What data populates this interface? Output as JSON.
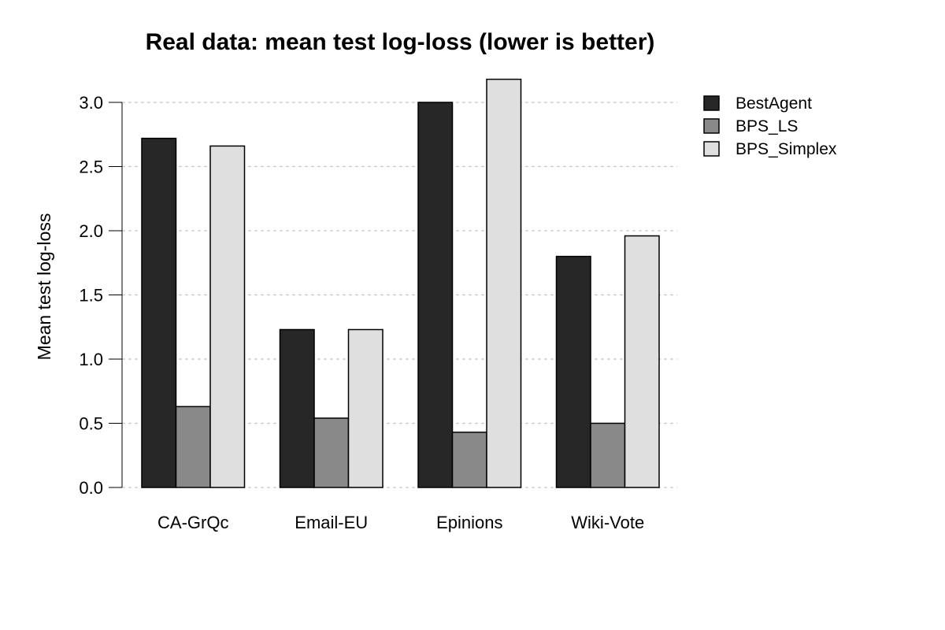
{
  "chart_data": {
    "type": "bar",
    "title": "Real data: mean test log-loss (lower is better)",
    "xlabel": "",
    "ylabel": "Mean test log-loss",
    "categories": [
      "CA-GrQc",
      "Email-EU",
      "Epinions",
      "Wiki-Vote"
    ],
    "series": [
      {
        "name": "BestAgent",
        "color": "#272727",
        "values": [
          2.72,
          1.23,
          3.0,
          1.8
        ]
      },
      {
        "name": "BPS_LS",
        "color": "#898989",
        "values": [
          0.63,
          0.54,
          0.43,
          0.5
        ]
      },
      {
        "name": "BPS_Simplex",
        "color": "#dfdfdf",
        "values": [
          2.66,
          1.23,
          3.18,
          1.96
        ]
      }
    ],
    "ylim": [
      0,
      3.2
    ],
    "yticks": [
      "0.0",
      "0.5",
      "1.0",
      "1.5",
      "2.0",
      "2.5",
      "3.0"
    ],
    "grid": "horizontal dashed",
    "legend_position": "right"
  }
}
